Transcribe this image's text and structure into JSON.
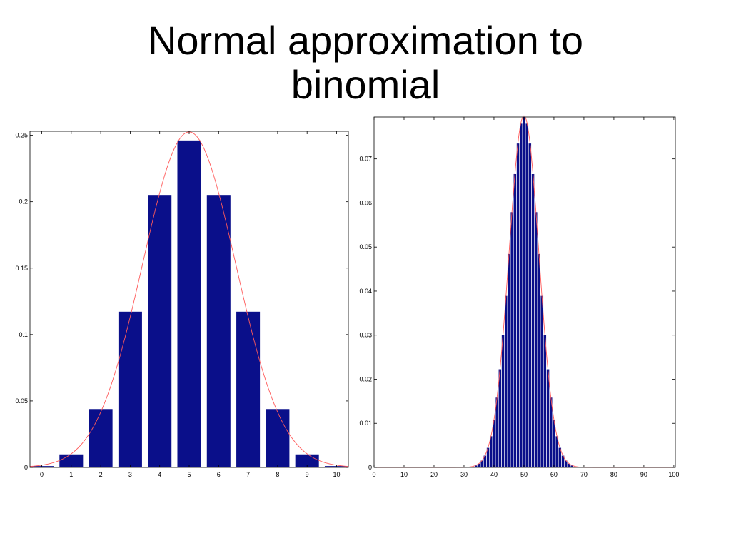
{
  "title": {
    "line1": "Normal approximation to",
    "line2": "binomial"
  },
  "colors": {
    "bar": "#0a0f8a",
    "bar_outline": "#ffffff",
    "curve": "#ff5a5a",
    "axis": "#000000"
  },
  "chart_data": [
    {
      "type": "bar",
      "overlay": "normal-curve",
      "x": [
        0,
        1,
        2,
        3,
        4,
        5,
        6,
        7,
        8,
        9,
        10
      ],
      "values": [
        0.001,
        0.0098,
        0.0439,
        0.1172,
        0.2051,
        0.2461,
        0.2051,
        0.1172,
        0.0439,
        0.0098,
        0.001
      ],
      "normal_curve": {
        "mean": 5,
        "sd": 1.58
      },
      "xlim": [
        -0.4,
        10.4
      ],
      "ylim": [
        0,
        0.253
      ],
      "xticks": [
        0,
        1,
        2,
        3,
        4,
        5,
        6,
        7,
        8,
        9,
        10
      ],
      "xtick_labels": [
        "0",
        "1",
        "2",
        "3",
        "4",
        "5",
        "6",
        "7",
        "8",
        "9",
        "10"
      ],
      "yticks": [
        0,
        0.05,
        0.1,
        0.15,
        0.2,
        0.25
      ],
      "ytick_labels": [
        "0",
        "0.05",
        "0.1",
        "0.15",
        "0.2",
        "0.25"
      ],
      "grid": false,
      "title": "",
      "xlabel": "",
      "ylabel": ""
    },
    {
      "type": "bar",
      "overlay": "normal-curve",
      "x_range": [
        0,
        100
      ],
      "binomial": {
        "n": 100,
        "p": 0.5
      },
      "normal_curve": {
        "mean": 50,
        "sd": 5
      },
      "xlim": [
        0,
        100.5
      ],
      "ylim": [
        0,
        0.0795
      ],
      "xticks": [
        0,
        10,
        20,
        30,
        40,
        50,
        60,
        70,
        80,
        90,
        100
      ],
      "xtick_labels": [
        "0",
        "10",
        "20",
        "30",
        "40",
        "50",
        "60",
        "70",
        "80",
        "90",
        "100"
      ],
      "yticks": [
        0,
        0.01,
        0.02,
        0.03,
        0.04,
        0.05,
        0.06,
        0.07
      ],
      "ytick_labels": [
        "0",
        "0.01",
        "0.02",
        "0.03",
        "0.04",
        "0.05",
        "0.06",
        "0.07"
      ],
      "grid": false,
      "title": "",
      "xlabel": "",
      "ylabel": ""
    }
  ]
}
